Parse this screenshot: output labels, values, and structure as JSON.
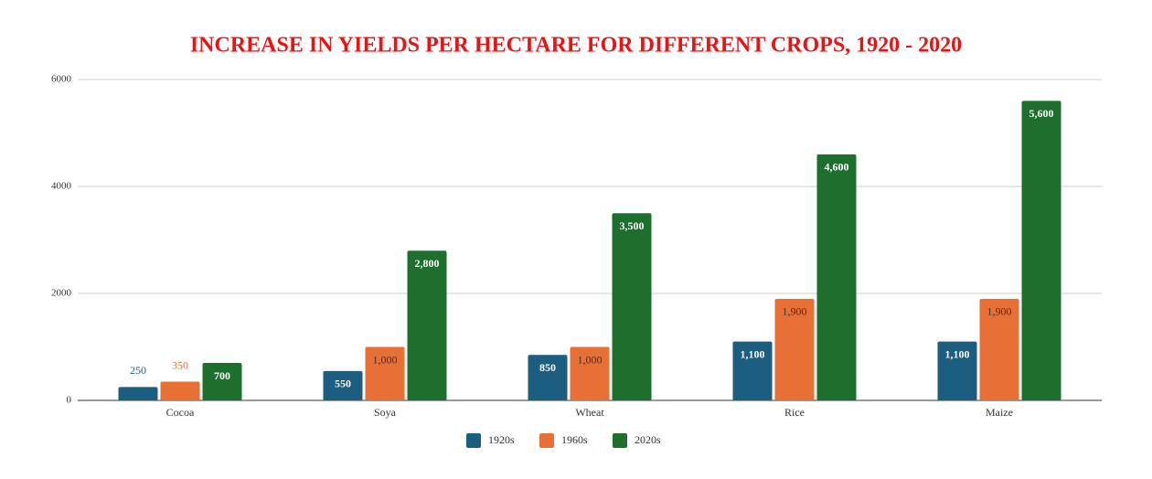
{
  "chart_data": {
    "type": "bar",
    "title": "INCREASE IN YIELDS PER HECTARE FOR DIFFERENT CROPS, 1920 - 2020",
    "categories": [
      "Cocoa",
      "Soya",
      "Wheat",
      "Rice",
      "Maize"
    ],
    "series": [
      {
        "name": "1920s",
        "color": "#1b5e80",
        "values": [
          250,
          550,
          850,
          1100,
          1100
        ],
        "value_labels": [
          "250",
          "550",
          "850",
          "1,100",
          "1,100"
        ]
      },
      {
        "name": "1960s",
        "color": "#e87035",
        "values": [
          350,
          1000,
          1000,
          1900,
          1900
        ],
        "value_labels": [
          "350",
          "1,000",
          "1,000",
          "1,900",
          "1,900"
        ]
      },
      {
        "name": "2020s",
        "color": "#1e6e2e",
        "values": [
          700,
          2800,
          3500,
          4600,
          5600
        ],
        "value_labels": [
          "700",
          "2,800",
          "3,500",
          "4,600",
          "5,600"
        ]
      }
    ],
    "ylim": [
      0,
      6000
    ],
    "yticks": [
      0,
      2000,
      4000,
      6000
    ],
    "grid": true,
    "legend": "bottom"
  }
}
